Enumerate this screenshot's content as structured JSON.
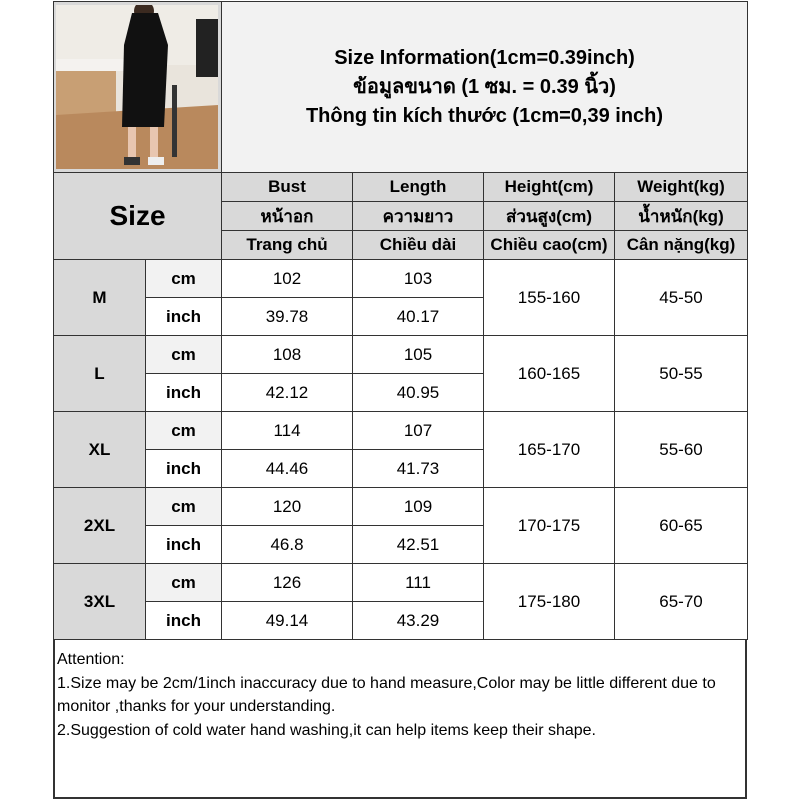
{
  "title": {
    "line1": "Size Information(1cm=0.39inch)",
    "line2": "ข้อมูลขนาด (1 ซม. = 0.39 นิ้ว)",
    "line3": "Thông tin kích thước (1cm=0,39 inch)"
  },
  "size_header": "Size",
  "columns": [
    {
      "en": "Bust",
      "th": "หน้าอก",
      "vi": "Trang chủ"
    },
    {
      "en": "Length",
      "th": "ความยาว",
      "vi": "Chiều dài"
    },
    {
      "en": "Height(cm)",
      "th": "ส่วนสูง(cm)",
      "vi": "Chiều cao(cm)"
    },
    {
      "en": "Weight(kg)",
      "th": "น้ำหนัก(kg)",
      "vi": "Cân nặng(kg)"
    }
  ],
  "units": {
    "cm": "cm",
    "inch": "inch"
  },
  "rows": [
    {
      "size": "M",
      "bust_cm": "102",
      "length_cm": "103",
      "bust_in": "39.78",
      "length_in": "40.17",
      "height": "155-160",
      "weight": "45-50"
    },
    {
      "size": "L",
      "bust_cm": "108",
      "length_cm": "105",
      "bust_in": "42.12",
      "length_in": "40.95",
      "height": "160-165",
      "weight": "50-55"
    },
    {
      "size": "XL",
      "bust_cm": "114",
      "length_cm": "107",
      "bust_in": "44.46",
      "length_in": "41.73",
      "height": "165-170",
      "weight": "55-60"
    },
    {
      "size": "2XL",
      "bust_cm": "120",
      "length_cm": "109",
      "bust_in": "46.8",
      "length_in": "42.51",
      "height": "170-175",
      "weight": "60-65"
    },
    {
      "size": "3XL",
      "bust_cm": "126",
      "length_cm": "111",
      "bust_in": "49.14",
      "length_in": "43.29",
      "height": "175-180",
      "weight": "65-70"
    }
  ],
  "attention": {
    "heading": "Attention:",
    "line1": "1.Size may be 2cm/1inch inaccuracy due to hand measure,Color may be little different due to monitor ,thanks for your understanding.",
    "line2": "2.Suggestion of cold water hand washing,it can help items keep their shape."
  }
}
